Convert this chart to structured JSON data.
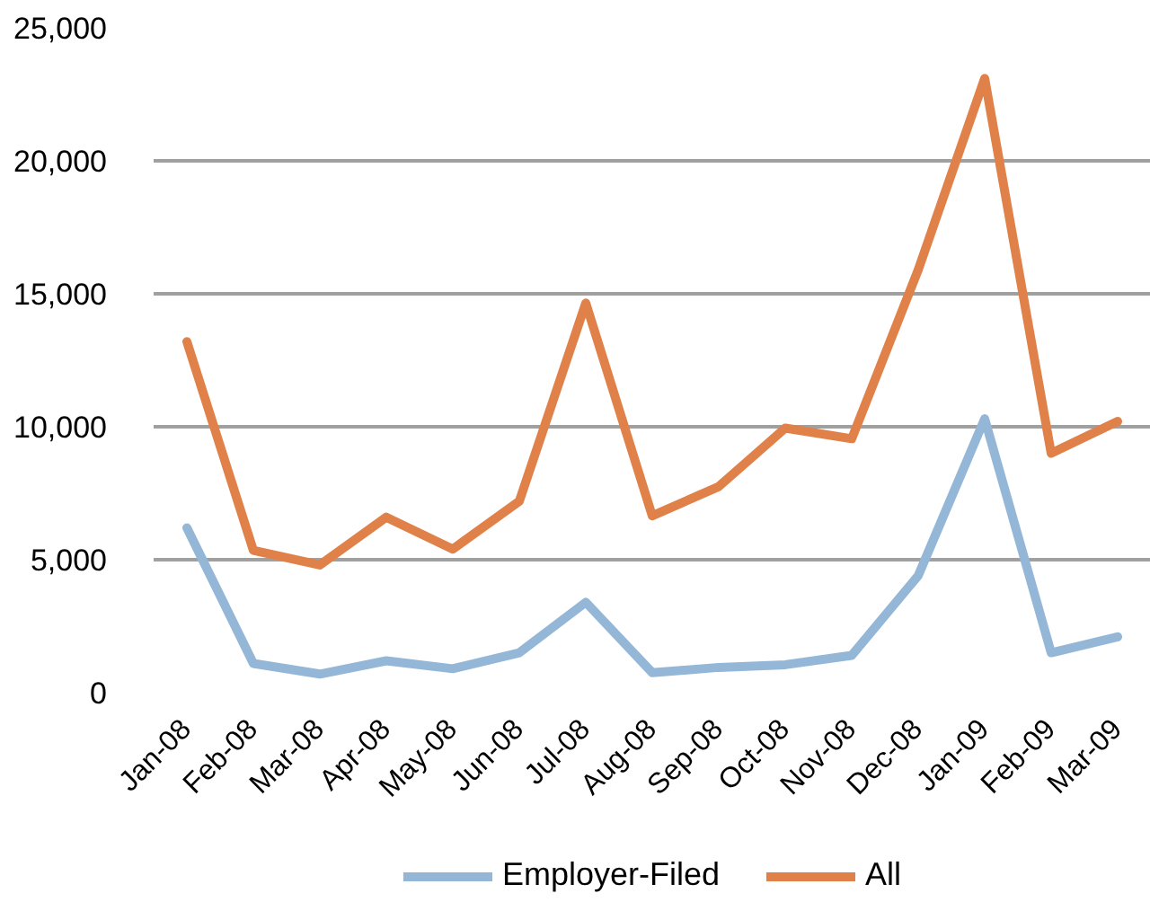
{
  "chart_data": {
    "type": "line",
    "categories": [
      "Jan-08",
      "Feb-08",
      "Mar-08",
      "Apr-08",
      "May-08",
      "Jun-08",
      "Jul-08",
      "Aug-08",
      "Sep-08",
      "Oct-08",
      "Nov-08",
      "Dec-08",
      "Jan-09",
      "Feb-09",
      "Mar-09"
    ],
    "series": [
      {
        "name": "Employer-Filed",
        "color": "#95b7d7",
        "values": [
          6200,
          1100,
          700,
          1200,
          900,
          1500,
          3400,
          750,
          950,
          1050,
          1400,
          4400,
          10300,
          1500,
          2100
        ]
      },
      {
        "name": "All",
        "color": "#e0814a",
        "values": [
          13200,
          5350,
          4800,
          6600,
          5400,
          7200,
          14650,
          6650,
          7750,
          9950,
          9550,
          15900,
          23100,
          9000,
          10200
        ]
      }
    ],
    "ylim": [
      0,
      25000
    ],
    "yticks": [
      {
        "value": 0,
        "label": "0"
      },
      {
        "value": 5000,
        "label": "5,000"
      },
      {
        "value": 10000,
        "label": "10,000"
      },
      {
        "value": 15000,
        "label": "15,000"
      },
      {
        "value": 20000,
        "label": "20,000"
      },
      {
        "value": 25000,
        "label": "25,000"
      }
    ],
    "grid": "y",
    "legend": "bottom"
  }
}
